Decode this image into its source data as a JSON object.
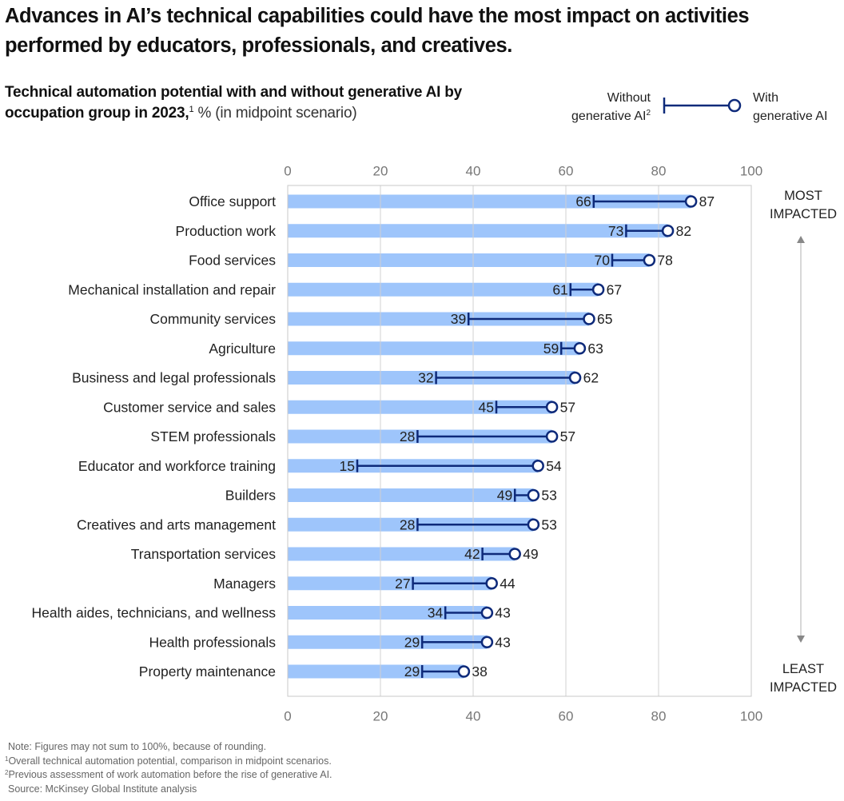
{
  "header": {
    "title": "Advances in AI’s technical capabilities could have the most impact on activities performed by educators, professionals, and creatives.",
    "subtitle_bold": "Technical automation potential with and without generative AI by occupation group in 2023,",
    "subtitle_sup": "1",
    "subtitle_light": " % (in midpoint scenario)"
  },
  "legend": {
    "without_line1": "Without",
    "without_line2": "generative AI",
    "without_sup": "2",
    "with_line1": "With",
    "with_line2": "generative AI"
  },
  "side_labels": {
    "top_line1": "MOST",
    "top_line2": "IMPACTED",
    "bottom_line1": "LEAST",
    "bottom_line2": "IMPACTED"
  },
  "notes": {
    "note": "Note: Figures may not sum to 100%, because of rounding.",
    "fn1_sup": "1",
    "fn1": "Overall technical automation potential, comparison in midpoint scenarios.",
    "fn2_sup": "2",
    "fn2": "Previous assessment of work automation before the rise of generative AI.",
    "source": "Source: McKinsey Global Institute analysis"
  },
  "colors": {
    "bar": "#9ec5fb",
    "line": "#0e2a7a",
    "grid": "#d0d0d0",
    "frame": "#c8c8c8",
    "text": "#222222",
    "axis_text": "#777777",
    "arrow": "#888888"
  },
  "chart_data": {
    "type": "dumbbell",
    "title": "Technical automation potential with and without generative AI by occupation group in 2023",
    "xlabel": "%",
    "xlim": [
      0,
      100
    ],
    "xticks": [
      0,
      20,
      40,
      60,
      80,
      100
    ],
    "grid": true,
    "legend_position": "top-right",
    "categories": [
      "Office support",
      "Production work",
      "Food services",
      "Mechanical installation and repair",
      "Community services",
      "Agriculture",
      "Business and legal professionals",
      "Customer service and sales",
      "STEM professionals",
      "Educator and workforce training",
      "Builders",
      "Creatives and arts management",
      "Transportation services",
      "Managers",
      "Health aides, technicians, and wellness",
      "Health professionals",
      "Property maintenance"
    ],
    "series": [
      {
        "name": "Without generative AI",
        "values": [
          66,
          73,
          70,
          61,
          39,
          59,
          32,
          45,
          28,
          15,
          49,
          28,
          42,
          27,
          34,
          29,
          29
        ]
      },
      {
        "name": "With generative AI",
        "values": [
          87,
          82,
          78,
          67,
          65,
          63,
          62,
          57,
          57,
          54,
          53,
          53,
          49,
          44,
          43,
          43,
          38
        ]
      }
    ]
  }
}
